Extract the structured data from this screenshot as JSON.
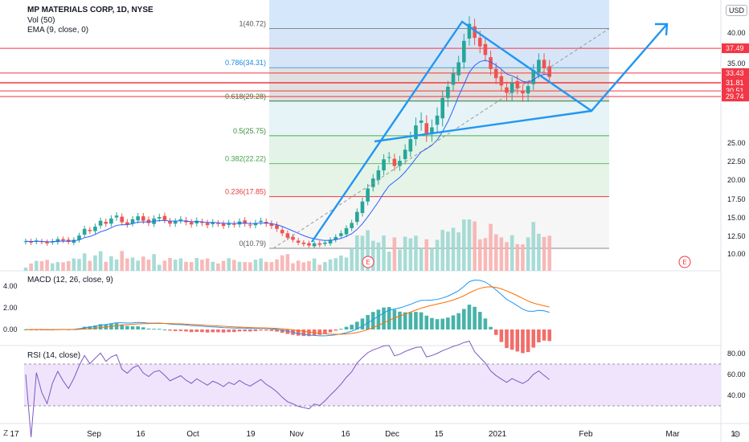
{
  "header": {
    "symbol_line": "MP MATERIALS CORP, 1D, NYSE",
    "vol_label": "Vol (50)",
    "ema_label": "EMA (9, close, 0)",
    "currency": "USD"
  },
  "macd": {
    "label": "MACD (12, 26, close, 9)",
    "ticks": [
      "4.00",
      "2.00",
      "0.00"
    ],
    "tick_values": [
      4,
      2,
      0
    ]
  },
  "rsi": {
    "label": "RSI (14, close)",
    "ticks": [
      "80.00",
      "60.00",
      "40.00"
    ],
    "tick_values": [
      80,
      60,
      40
    ],
    "band": [
      30,
      70
    ]
  },
  "xaxis": {
    "labels": [
      "17",
      "Sep",
      "16",
      "Oct",
      "19",
      "Nov",
      "16",
      "Dec",
      "15",
      "2021",
      "Feb",
      "Mar",
      "1"
    ],
    "zoom_icon": "Z",
    "settings_icon": "gear-icon"
  },
  "colors": {
    "up": "#26a69a",
    "down": "#ef5350",
    "trend": "#2196f3",
    "level": "#f23645"
  },
  "chart_data": {
    "type": "candlestick",
    "title": "MP MATERIALS CORP, 1D, NYSE",
    "y_ticks": [
      "40.00",
      "35.00",
      "30.00",
      "25.00",
      "22.50",
      "20.00",
      "17.50",
      "15.00",
      "12.50",
      "10.00"
    ],
    "y_tick_values": [
      40,
      35,
      30,
      25,
      22.5,
      20,
      17.5,
      15,
      12.5,
      10
    ],
    "price_labels": [
      {
        "text": "37.49",
        "value": 37.49
      },
      {
        "text": "33.43",
        "value": 33.43
      },
      {
        "text": "31.87",
        "value": 31.87
      },
      {
        "text": "31.81",
        "value": 31.81
      },
      {
        "text": "30.51",
        "value": 30.51
      },
      {
        "text": "29.74",
        "value": 29.74
      }
    ],
    "fibonacci": [
      {
        "label": "1(40.72)",
        "value": 40.72
      },
      {
        "label": "0.786(34.31)",
        "value": 34.31
      },
      {
        "label": "0.618(29.28)",
        "value": 29.28
      },
      {
        "label": "0.5(25.75)",
        "value": 25.75
      },
      {
        "label": "0.382(22.22)",
        "value": 22.22
      },
      {
        "label": "0.236(17.85)",
        "value": 17.85
      },
      {
        "label": "0(10.79)",
        "value": 10.79
      }
    ],
    "earnings_markers": [
      "E",
      "E"
    ],
    "approx_close_series": [
      11.8,
      11.6,
      11.9,
      11.7,
      11.5,
      11.8,
      12.1,
      11.9,
      11.7,
      12.0,
      12.6,
      13.5,
      13.2,
      13.8,
      14.6,
      14.2,
      14.9,
      15.3,
      14.4,
      14.1,
      14.8,
      15.2,
      14.6,
      14.3,
      14.9,
      15.1,
      14.7,
      14.2,
      14.5,
      14.8,
      14.4,
      14.1,
      14.6,
      14.3,
      14.0,
      14.4,
      14.2,
      13.9,
      14.3,
      14.1,
      14.5,
      14.2,
      14.0,
      14.3,
      14.6,
      14.2,
      13.9,
      13.5,
      12.9,
      12.3,
      12.0,
      11.6,
      11.4,
      11.2,
      11.5,
      11.3,
      11.6,
      12.0,
      12.4,
      12.9,
      13.6,
      14.3,
      15.8,
      17.2,
      18.9,
      20.2,
      21.3,
      22.8,
      23.1,
      21.9,
      22.6,
      24.1,
      25.4,
      26.8,
      27.3,
      25.9,
      26.6,
      27.8,
      29.6,
      31.2,
      33.4,
      35.2,
      38.7,
      41.5,
      39.2,
      37.8,
      36.4,
      34.1,
      32.6,
      31.4,
      30.2,
      31.8,
      30.9,
      30.1,
      31.3,
      33.9,
      35.6,
      34.2,
      32.8
    ]
  }
}
